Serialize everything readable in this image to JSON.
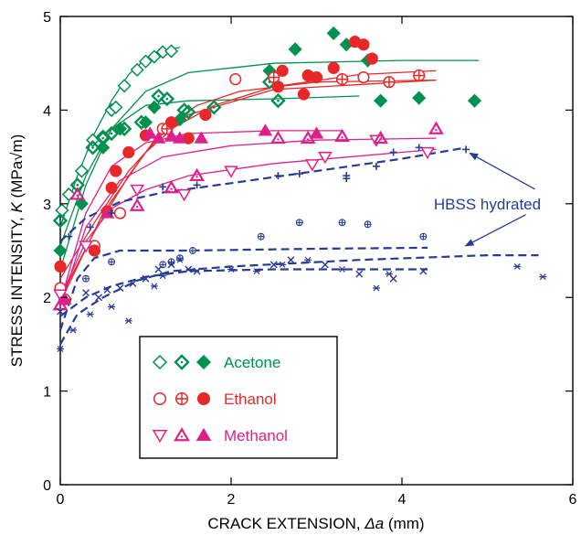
{
  "chart_data": {
    "type": "scatter",
    "xlabel_prefix": "CRACK EXTENSION, ",
    "xlabel_symbol": "Δa",
    "xlabel_suffix": " (mm)",
    "ylabel_prefix": "STRESS INTENSITY, ",
    "ylabel_symbol": "K",
    "ylabel_suffix": " (MPa√m)",
    "xlim": [
      0,
      6
    ],
    "ylim": [
      0,
      5
    ],
    "x_ticks": [
      0,
      2,
      4,
      6
    ],
    "y_ticks": [
      0,
      1,
      2,
      3,
      4,
      5
    ],
    "x_tick_labels": [
      "0",
      "2",
      "4",
      "6"
    ],
    "y_tick_labels": [
      "0",
      "1",
      "2",
      "3",
      "4",
      "5"
    ],
    "grid": false,
    "legend_position": "bottom-left",
    "annotation": {
      "text": "HBSS hydrated",
      "arrow_targets": [
        [
          4.75,
          3.58
        ],
        [
          4.7,
          2.53
        ]
      ],
      "text_pos": [
        5.0,
        3.0
      ]
    },
    "colors": {
      "acetone": "#009050",
      "ethanol": "#e82828",
      "methanol": "#e0208a",
      "hbss": "#283c96"
    },
    "series": [
      {
        "name": "Acetone",
        "group": "acetone",
        "marker": "diamond-open",
        "points": [
          [
            0.02,
            2.93
          ],
          [
            0.1,
            3.1
          ],
          [
            0.25,
            3.35
          ],
          [
            0.38,
            3.68
          ],
          [
            0.5,
            3.72
          ],
          [
            0.6,
            4.0
          ],
          [
            0.65,
            4.03
          ],
          [
            0.75,
            4.26
          ],
          [
            0.9,
            4.43
          ],
          [
            1.0,
            4.52
          ],
          [
            1.1,
            4.57
          ],
          [
            1.2,
            4.62
          ],
          [
            1.3,
            4.63
          ]
        ],
        "fit": [
          [
            0.0,
            2.75
          ],
          [
            0.2,
            3.3
          ],
          [
            0.4,
            3.75
          ],
          [
            0.6,
            4.1
          ],
          [
            0.8,
            4.38
          ],
          [
            1.0,
            4.55
          ],
          [
            1.2,
            4.63
          ],
          [
            1.4,
            4.67
          ]
        ]
      },
      {
        "name": "Acetone",
        "group": "acetone",
        "marker": "diamond-dotted",
        "points": [
          [
            0.0,
            2.82
          ],
          [
            0.2,
            3.2
          ],
          [
            0.38,
            3.6
          ],
          [
            0.5,
            3.7
          ],
          [
            0.6,
            3.75
          ],
          [
            0.75,
            3.8
          ],
          [
            0.95,
            3.87
          ],
          [
            1.15,
            4.15
          ],
          [
            1.25,
            4.12
          ],
          [
            1.45,
            4.0
          ],
          [
            1.5,
            3.98
          ],
          [
            1.8,
            4.03
          ],
          [
            2.45,
            4.3
          ],
          [
            2.55,
            4.1
          ]
        ],
        "fit": [
          [
            0.0,
            2.55
          ],
          [
            0.3,
            3.3
          ],
          [
            0.6,
            3.8
          ],
          [
            1.0,
            4.05
          ],
          [
            1.5,
            4.1
          ],
          [
            2.5,
            4.12
          ],
          [
            3.5,
            4.15
          ]
        ]
      },
      {
        "name": "Acetone",
        "group": "acetone",
        "marker": "diamond-filled",
        "points": [
          [
            0.0,
            2.5
          ],
          [
            0.25,
            3.0
          ],
          [
            0.5,
            3.6
          ],
          [
            0.7,
            3.8
          ],
          [
            1.0,
            3.87
          ],
          [
            1.1,
            4.03
          ],
          [
            1.4,
            3.9
          ],
          [
            2.45,
            4.42
          ],
          [
            2.75,
            4.65
          ],
          [
            3.2,
            4.82
          ],
          [
            3.35,
            4.7
          ],
          [
            3.6,
            4.53
          ],
          [
            3.75,
            4.1
          ],
          [
            4.2,
            4.13
          ],
          [
            4.85,
            4.1
          ]
        ],
        "fit": [
          [
            0.0,
            2.3
          ],
          [
            0.3,
            3.2
          ],
          [
            0.6,
            3.8
          ],
          [
            1.0,
            4.2
          ],
          [
            1.5,
            4.4
          ],
          [
            2.5,
            4.5
          ],
          [
            4.0,
            4.53
          ],
          [
            4.9,
            4.53
          ]
        ]
      },
      {
        "name": "Ethanol",
        "group": "ethanol",
        "marker": "circle-open",
        "points": [
          [
            0.0,
            2.1
          ],
          [
            0.4,
            2.55
          ],
          [
            0.7,
            2.9
          ],
          [
            1.2,
            3.8
          ],
          [
            2.05,
            4.33
          ],
          [
            3.55,
            4.35
          ]
        ],
        "fit": [
          [
            0.0,
            2.0
          ],
          [
            0.4,
            2.7
          ],
          [
            0.8,
            3.3
          ],
          [
            1.2,
            3.8
          ],
          [
            1.6,
            4.05
          ],
          [
            2.1,
            4.2
          ],
          [
            3.0,
            4.3
          ],
          [
            4.4,
            4.32
          ]
        ]
      },
      {
        "name": "Ethanol",
        "group": "ethanol",
        "marker": "circle-plus",
        "points": [
          [
            0.05,
            1.98
          ],
          [
            1.25,
            3.8
          ],
          [
            2.5,
            4.35
          ],
          [
            3.3,
            4.33
          ],
          [
            3.85,
            4.3
          ],
          [
            4.2,
            4.37
          ]
        ],
        "fit": [
          [
            0.0,
            1.95
          ],
          [
            0.5,
            2.9
          ],
          [
            1.0,
            3.55
          ],
          [
            1.5,
            3.95
          ],
          [
            2.5,
            4.22
          ],
          [
            4.4,
            4.32
          ]
        ]
      },
      {
        "name": "Ethanol",
        "group": "ethanol",
        "marker": "circle-filled",
        "points": [
          [
            0.0,
            2.33
          ],
          [
            0.4,
            2.5
          ],
          [
            0.55,
            2.92
          ],
          [
            0.6,
            3.17
          ],
          [
            0.65,
            3.35
          ],
          [
            0.8,
            3.55
          ],
          [
            1.0,
            3.73
          ],
          [
            1.3,
            3.87
          ],
          [
            1.5,
            3.7
          ],
          [
            1.7,
            3.95
          ],
          [
            2.55,
            4.25
          ],
          [
            2.6,
            4.42
          ],
          [
            2.85,
            4.17
          ],
          [
            2.9,
            4.37
          ],
          [
            3.0,
            4.35
          ],
          [
            3.2,
            4.45
          ],
          [
            3.45,
            4.73
          ],
          [
            3.55,
            4.7
          ],
          [
            3.65,
            4.55
          ]
        ],
        "fit": [
          [
            0.0,
            2.2
          ],
          [
            0.4,
            2.8
          ],
          [
            0.8,
            3.35
          ],
          [
            1.2,
            3.75
          ],
          [
            1.8,
            4.05
          ],
          [
            2.5,
            4.25
          ],
          [
            3.5,
            4.38
          ],
          [
            4.4,
            4.42
          ]
        ]
      },
      {
        "name": "Methanol",
        "group": "methanol",
        "marker": "triangle-down-open",
        "points": [
          [
            0.0,
            2.03
          ],
          [
            0.3,
            2.55
          ],
          [
            0.9,
            3.15
          ],
          [
            1.45,
            3.1
          ],
          [
            2.0,
            3.35
          ],
          [
            2.95,
            3.42
          ],
          [
            3.1,
            3.5
          ],
          [
            3.7,
            3.68
          ],
          [
            4.3,
            3.55
          ]
        ],
        "fit": [
          [
            0.0,
            2.0
          ],
          [
            0.3,
            2.6
          ],
          [
            0.6,
            2.95
          ],
          [
            1.0,
            3.15
          ],
          [
            1.5,
            3.3
          ],
          [
            2.5,
            3.43
          ],
          [
            4.0,
            3.55
          ],
          [
            4.4,
            3.58
          ]
        ]
      },
      {
        "name": "Methanol",
        "group": "methanol",
        "marker": "triangle-up-dotted",
        "points": [
          [
            0.0,
            1.92
          ],
          [
            0.2,
            3.1
          ],
          [
            0.9,
            2.98
          ],
          [
            1.3,
            3.17
          ],
          [
            1.6,
            3.3
          ],
          [
            2.55,
            3.7
          ],
          [
            2.9,
            3.7
          ],
          [
            3.3,
            3.72
          ],
          [
            3.75,
            3.7
          ],
          [
            4.4,
            3.8
          ]
        ],
        "fit": [
          [
            0.0,
            1.9
          ],
          [
            0.3,
            2.75
          ],
          [
            0.7,
            3.25
          ],
          [
            1.2,
            3.5
          ],
          [
            2.0,
            3.62
          ],
          [
            3.0,
            3.68
          ],
          [
            4.4,
            3.7
          ]
        ]
      },
      {
        "name": "Methanol",
        "group": "methanol",
        "marker": "triangle-up-filled",
        "points": [
          [
            0.05,
            1.98
          ],
          [
            0.55,
            2.9
          ],
          [
            1.05,
            3.75
          ],
          [
            1.15,
            3.7
          ],
          [
            1.3,
            3.72
          ],
          [
            1.4,
            3.7
          ],
          [
            1.65,
            3.7
          ],
          [
            2.4,
            3.78
          ],
          [
            3.0,
            3.75
          ]
        ],
        "fit": [
          [
            0.0,
            1.95
          ],
          [
            0.3,
            2.9
          ],
          [
            0.6,
            3.4
          ],
          [
            1.0,
            3.65
          ],
          [
            1.5,
            3.75
          ],
          [
            2.5,
            3.78
          ],
          [
            3.3,
            3.78
          ]
        ]
      },
      {
        "name": "",
        "group": "hbss",
        "marker": "plus",
        "points": [
          [
            0.1,
            2.65
          ],
          [
            0.35,
            2.75
          ],
          [
            0.6,
            2.9
          ],
          [
            1.2,
            3.18
          ],
          [
            1.6,
            3.2
          ],
          [
            2.55,
            3.3
          ],
          [
            2.8,
            3.32
          ],
          [
            3.35,
            3.3
          ],
          [
            3.35,
            3.27
          ],
          [
            3.7,
            3.4
          ],
          [
            3.9,
            3.55
          ],
          [
            4.2,
            3.6
          ],
          [
            4.75,
            3.58
          ]
        ],
        "fit": [
          [
            0.0,
            2.6
          ],
          [
            0.3,
            2.85
          ],
          [
            0.7,
            3.02
          ],
          [
            1.2,
            3.12
          ],
          [
            2.0,
            3.22
          ],
          [
            3.0,
            3.35
          ],
          [
            4.0,
            3.48
          ],
          [
            4.75,
            3.6
          ]
        ]
      },
      {
        "name": "",
        "group": "hbss",
        "marker": "circle-plus-small",
        "points": [
          [
            0.3,
            2.2
          ],
          [
            0.6,
            2.38
          ],
          [
            1.2,
            2.35
          ],
          [
            1.3,
            2.38
          ],
          [
            1.4,
            2.42
          ],
          [
            1.55,
            2.5
          ],
          [
            2.35,
            2.65
          ],
          [
            2.8,
            2.8
          ],
          [
            3.3,
            2.8
          ],
          [
            3.6,
            2.78
          ],
          [
            4.25,
            2.65
          ]
        ],
        "fit": [
          [
            0.0,
            1.65
          ],
          [
            0.2,
            2.2
          ],
          [
            0.4,
            2.42
          ],
          [
            0.7,
            2.5
          ],
          [
            1.5,
            2.5
          ],
          [
            3.0,
            2.52
          ],
          [
            4.3,
            2.53
          ]
        ]
      },
      {
        "name": "",
        "group": "hbss",
        "marker": "star",
        "points": [
          [
            0.0,
            1.45
          ],
          [
            0.15,
            1.65
          ],
          [
            0.35,
            1.82
          ],
          [
            0.6,
            1.9
          ],
          [
            0.8,
            1.75
          ],
          [
            1.1,
            2.12
          ],
          [
            1.2,
            2.23
          ],
          [
            1.4,
            2.4
          ],
          [
            2.0,
            2.3
          ],
          [
            2.3,
            2.28
          ],
          [
            2.6,
            2.35
          ],
          [
            2.9,
            2.4
          ],
          [
            3.3,
            2.3
          ],
          [
            3.7,
            2.1
          ],
          [
            3.85,
            2.25
          ],
          [
            5.35,
            2.33
          ],
          [
            5.65,
            2.22
          ]
        ],
        "fit": [
          [
            0.0,
            1.5
          ],
          [
            0.2,
            1.82
          ],
          [
            0.5,
            2.0
          ],
          [
            0.9,
            2.18
          ],
          [
            1.3,
            2.28
          ],
          [
            2.0,
            2.33
          ],
          [
            3.5,
            2.4
          ],
          [
            5.0,
            2.45
          ],
          [
            5.6,
            2.45
          ]
        ]
      },
      {
        "name": "",
        "group": "hbss",
        "marker": "x",
        "points": [
          [
            0.0,
            1.85
          ],
          [
            0.3,
            2.05
          ],
          [
            0.45,
            2.0
          ],
          [
            0.55,
            2.08
          ],
          [
            0.7,
            2.1
          ],
          [
            0.85,
            2.15
          ],
          [
            1.0,
            2.2
          ],
          [
            1.15,
            2.3
          ],
          [
            1.3,
            2.35
          ],
          [
            1.5,
            2.3
          ],
          [
            1.6,
            2.28
          ],
          [
            2.5,
            2.35
          ],
          [
            2.7,
            2.4
          ],
          [
            3.1,
            2.35
          ],
          [
            3.5,
            2.25
          ],
          [
            3.9,
            2.2
          ],
          [
            4.25,
            2.28
          ]
        ],
        "fit": [
          [
            0.0,
            1.8
          ],
          [
            0.3,
            2.0
          ],
          [
            0.6,
            2.12
          ],
          [
            1.0,
            2.22
          ],
          [
            1.5,
            2.28
          ],
          [
            2.5,
            2.3
          ],
          [
            4.3,
            2.3
          ]
        ]
      }
    ],
    "legend": [
      {
        "label": "Acetone",
        "group": "acetone",
        "markers": [
          "diamond-open",
          "diamond-dotted",
          "diamond-filled"
        ]
      },
      {
        "label": "Ethanol",
        "group": "ethanol",
        "markers": [
          "circle-open",
          "circle-plus",
          "circle-filled"
        ]
      },
      {
        "label": "Methanol",
        "group": "methanol",
        "markers": [
          "triangle-down-open",
          "triangle-up-dotted",
          "triangle-up-filled"
        ]
      }
    ]
  }
}
